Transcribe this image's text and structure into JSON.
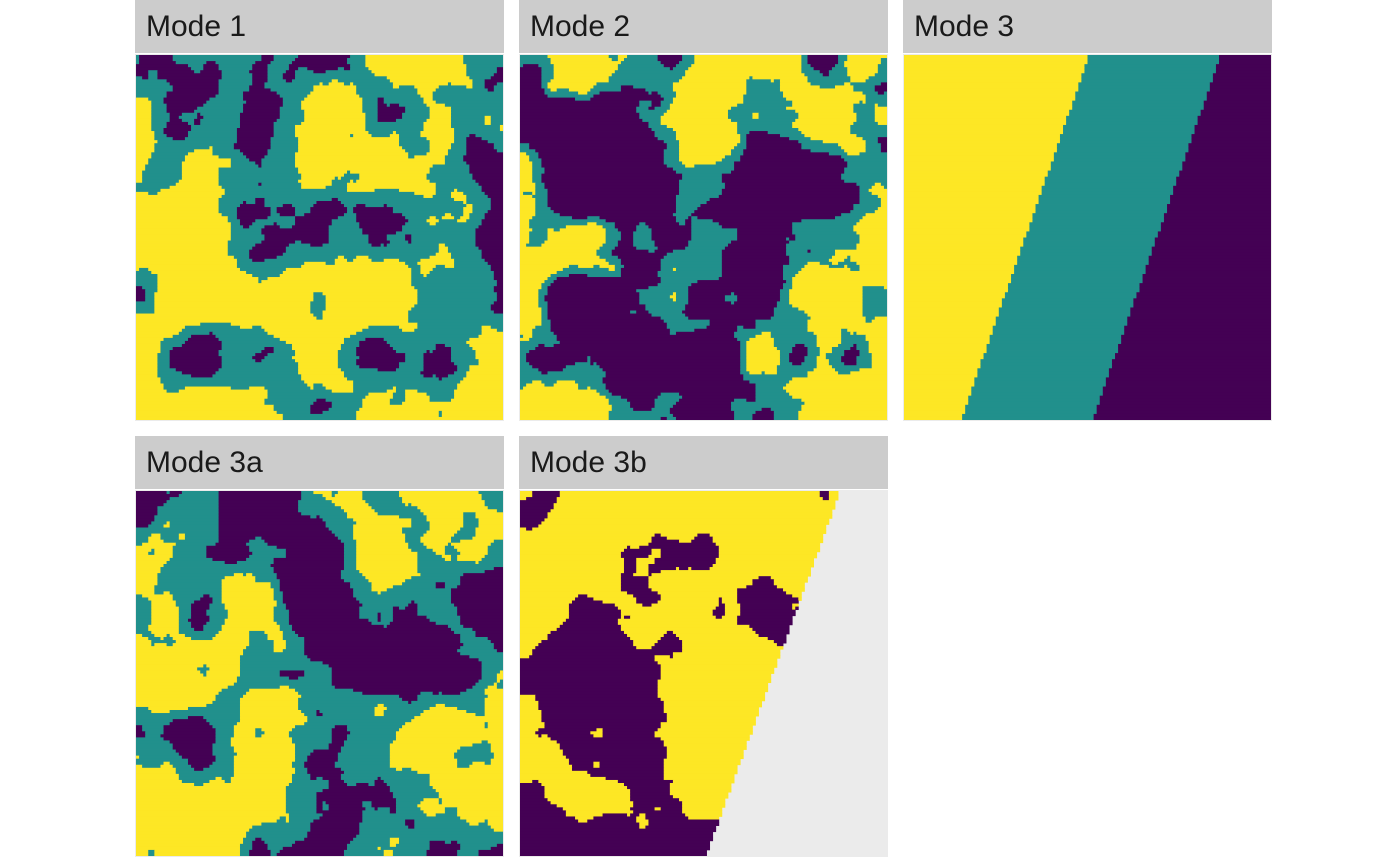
{
  "chart_data": {
    "type": "heatmap",
    "facet_layout": "3 columns, 2 rows",
    "palette": {
      "1": "#440154",
      "2": "#21908C",
      "3": "#FDE725",
      "missing": "#E8E8E8"
    },
    "grid_cells": 120,
    "axes": "none shown",
    "panels": [
      {
        "label": "Mode 1",
        "description": "patchy three-class random field"
      },
      {
        "label": "Mode 2",
        "description": "patchy three-class random field"
      },
      {
        "label": "Mode 3",
        "description": "three diagonal bands: yellow (left), teal (middle), purple (right)"
      },
      {
        "label": "Mode 3a",
        "description": "patchy three-class random field"
      },
      {
        "label": "Mode 3b",
        "description": "two-class field (purple, yellow) clipped along diagonal; right region empty"
      }
    ]
  }
}
